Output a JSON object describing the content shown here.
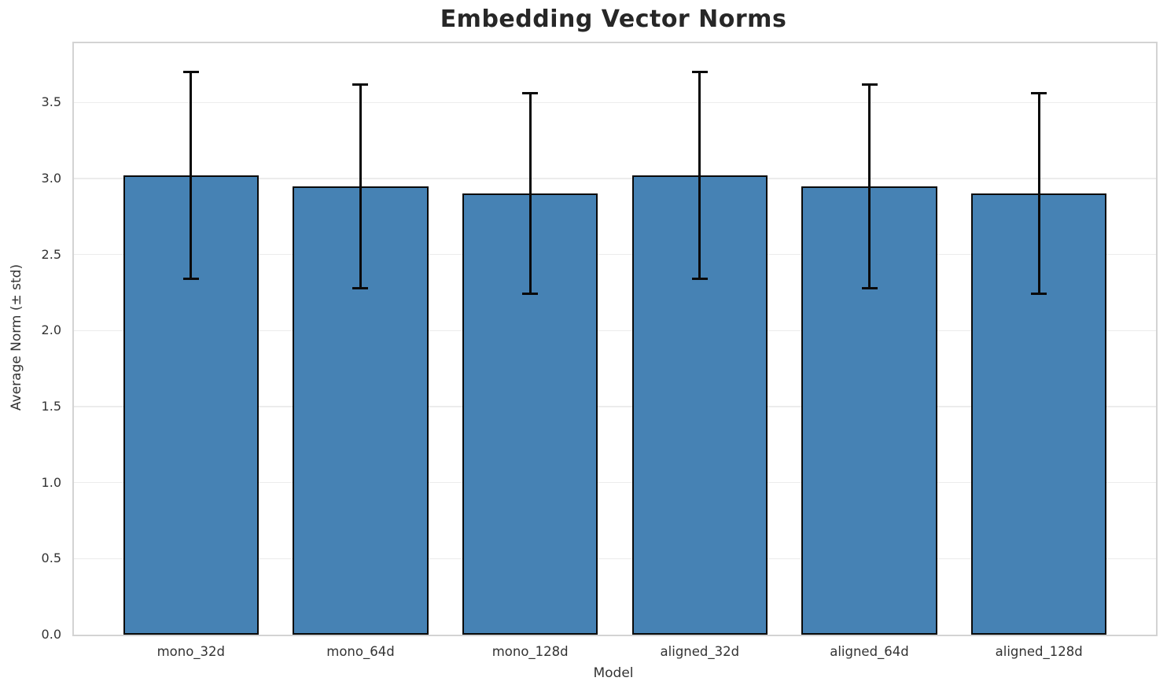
{
  "chart_data": {
    "type": "bar",
    "title": "Embedding Vector Norms",
    "xlabel": "Model",
    "ylabel": "Average Norm (± std)",
    "categories": [
      "mono_32d",
      "mono_64d",
      "mono_128d",
      "aligned_32d",
      "aligned_64d",
      "aligned_128d"
    ],
    "series": [
      {
        "name": "Average Norm",
        "values": [
          3.02,
          2.95,
          2.9,
          3.02,
          2.95,
          2.9
        ],
        "errors": [
          0.68,
          0.67,
          0.66,
          0.68,
          0.67,
          0.66
        ]
      }
    ],
    "yticks": [
      0.0,
      0.5,
      1.0,
      1.5,
      2.0,
      2.5,
      3.0,
      3.5
    ],
    "ylim": [
      0,
      3.89
    ],
    "xlim": [
      -0.69,
      5.69
    ],
    "bar_width_units": 0.8,
    "grid": "horizontal",
    "legend": "none",
    "colors": {
      "bar_fill": "#4682B4",
      "bar_edge": "#0a0a0a",
      "error_bar": "#0a0a0a",
      "grid_line": "#ECECEC",
      "spine": "#D3D3D3",
      "title_text": "#272727",
      "tick_text": "#333333",
      "background": "#FFFFFF"
    }
  }
}
